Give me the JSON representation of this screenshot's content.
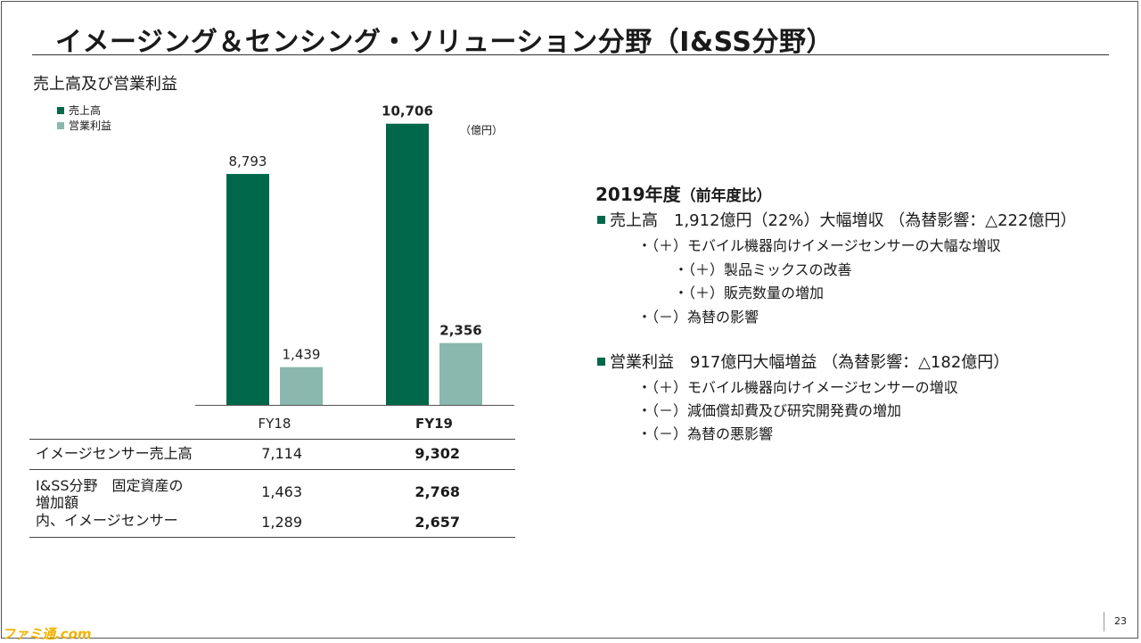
{
  "page": {
    "title": "イメージング＆センシング・ソリューション分野（I&SS分野）",
    "page_number": "23",
    "watermark": "ファミ通.com"
  },
  "colors": {
    "sales": "#00684a",
    "profit": "#8ab8ae",
    "accent": "#00684a"
  },
  "chart_data": {
    "type": "bar",
    "title": "売上高及び営業利益",
    "unit": "（億円）",
    "categories": [
      "FY18",
      "FY19"
    ],
    "series": [
      {
        "name": "売上高",
        "values": [
          8793,
          10706
        ],
        "labels": [
          "8,793",
          "10,706"
        ]
      },
      {
        "name": "営業利益",
        "values": [
          1439,
          2356
        ],
        "labels": [
          "1,439",
          "2,356"
        ]
      }
    ],
    "ylim": [
      0,
      12700
    ],
    "grid": false,
    "legend": "top-left"
  },
  "table": {
    "rows": [
      {
        "label": "イメージセンサー売上高",
        "fy18": "7,114",
        "fy19": "9,302"
      },
      {
        "label_lines": [
          "I&SS分野　固定資産の",
          "増加額"
        ],
        "fy18": "1,463",
        "fy19": "2,768"
      },
      {
        "label": "内、イメージセンサー",
        "fy18": "1,289",
        "fy19": "2,657"
      }
    ]
  },
  "summary": {
    "heading": "2019年度",
    "heading_note": "（前年度比）",
    "sales_line": "売上高　1,912億円（22%）大幅増収 （為替影響：△222億円）",
    "sales_items": [
      "・（＋）モバイル機器向けイメージセンサーの大幅な増収",
      "・（＋）製品ミックスの改善",
      "・（＋）販売数量の増加",
      "・（－）為替の影響"
    ],
    "profit_line": "営業利益　917億円大幅増益 （為替影響：△182億円）",
    "profit_items": [
      "・（＋）モバイル機器向けイメージセンサーの増収",
      "・（－）減価償却費及び研究開発費の増加",
      "・（－）為替の悪影響"
    ]
  }
}
